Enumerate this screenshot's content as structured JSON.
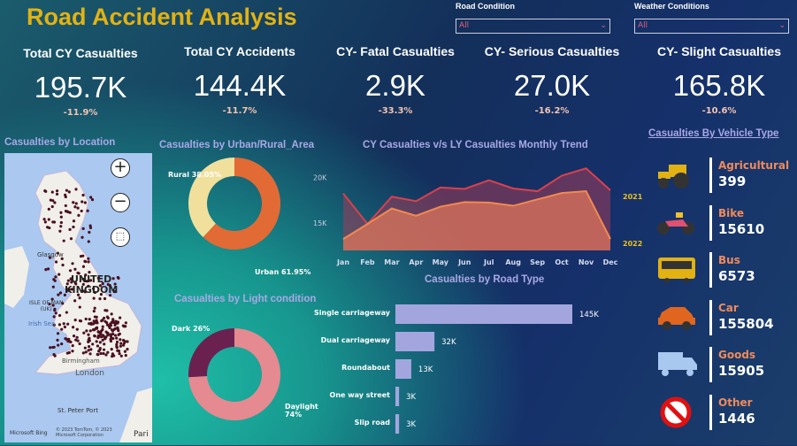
{
  "header": {
    "title": "Road Accident Analysis"
  },
  "filters": [
    {
      "label": "Road Condition",
      "value": "All"
    },
    {
      "label": "Weather Conditions",
      "value": "All"
    }
  ],
  "kpis": [
    {
      "label": "Total CY Casualties",
      "value": "195.7K",
      "change": "-11.9%"
    },
    {
      "label": "Total CY Accidents",
      "value": "144.4K",
      "change": "-11.7%"
    },
    {
      "label": "CY- Fatal Casualties",
      "value": "2.9K",
      "change": "-33.3%"
    },
    {
      "label": "CY- Serious Casualties",
      "value": "27.0K",
      "change": "-16.2%"
    },
    {
      "label": "CY- Slight Casualties",
      "value": "165.8K",
      "change": "-10.6%"
    }
  ],
  "map": {
    "title": "Casualties by Location",
    "labels": {
      "country": "UNITED",
      "country2": "KINGDOM",
      "isle": "ISLE OF MAN",
      "isle2": "(UK)",
      "sea": "Irish Sea",
      "glasgow": "Glasgow",
      "bham": "Birmingham",
      "london": "London",
      "stpeter": "St. Peter Port",
      "paris": "Pari",
      "bing": "Microsoft Bing",
      "copyright": "© 2023 TomTom, © 2023 Microsoft Corporation"
    }
  },
  "chart_data": [
    {
      "type": "pie",
      "title": "Casualties by Urban/Rural_Area",
      "categories": [
        "Rural",
        "Urban"
      ],
      "values": [
        38.05,
        61.95
      ],
      "labels": [
        "Rural 38.05%",
        "Urban 61.95%"
      ],
      "colors": [
        "#f0e09c",
        "#e26a35"
      ]
    },
    {
      "type": "pie",
      "title": "Casualties by Light condition",
      "categories": [
        "Dark",
        "Daylight"
      ],
      "values": [
        26,
        74
      ],
      "labels": [
        "Dark 26%",
        "Daylight 74%"
      ],
      "colors": [
        "#6b2150",
        "#e48a90"
      ]
    },
    {
      "type": "area",
      "title": "CY Casualties v/s LY Casualties Monthly Trend",
      "categories": [
        "Jan",
        "Feb",
        "Mar",
        "Apr",
        "May",
        "Jun",
        "Jul",
        "Aug",
        "Sep",
        "Oct",
        "Nov",
        "Dec"
      ],
      "yticks": [
        "15K",
        "20K"
      ],
      "ylim": [
        12000,
        22000
      ],
      "series": [
        {
          "name": "2021",
          "values": [
            18250,
            14900,
            17900,
            17400,
            18900,
            18750,
            19700,
            18800,
            18500,
            20200,
            21000,
            18600
          ],
          "color": "#d9414d"
        },
        {
          "name": "2022",
          "values": [
            13250,
            14900,
            16600,
            15800,
            16800,
            17300,
            17250,
            16900,
            17600,
            18300,
            18500,
            13250
          ],
          "color": "#f08a50"
        }
      ]
    },
    {
      "type": "bar",
      "title": "Casualties by Road Type",
      "categories": [
        "Single carriageway",
        "Dual carriageway",
        "Roundabout",
        "One way street",
        "Slip road"
      ],
      "values": [
        145,
        32,
        13,
        3,
        3
      ],
      "labels": [
        "145K",
        "32K",
        "13K",
        "3K",
        "3K"
      ],
      "color": "#a3a6de"
    }
  ],
  "vehicles": {
    "title": "Casualties By Vehicle Type",
    "items": [
      {
        "name": "Agricultural",
        "value": "399",
        "icon": "tractor-icon"
      },
      {
        "name": "Bike",
        "value": "15610",
        "icon": "motorbike-icon"
      },
      {
        "name": "Bus",
        "value": "6573",
        "icon": "bus-icon"
      },
      {
        "name": "Car",
        "value": "155804",
        "icon": "car-icon"
      },
      {
        "name": "Goods",
        "value": "15905",
        "icon": "truck-icon"
      },
      {
        "name": "Other",
        "value": "1446",
        "icon": "prohibited-icon"
      }
    ]
  }
}
